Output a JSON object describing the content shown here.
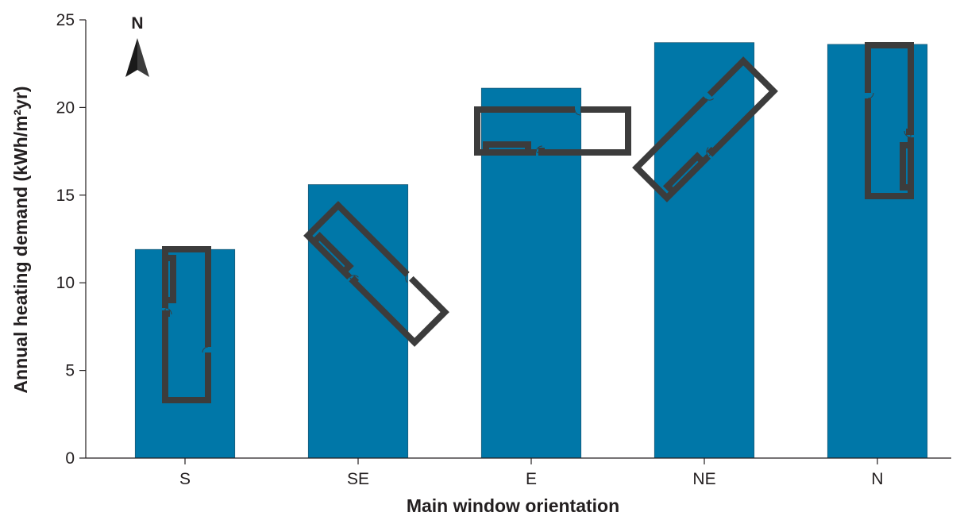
{
  "chart_data": {
    "type": "bar",
    "categories": [
      "S",
      "SE",
      "E",
      "NE",
      "N"
    ],
    "values": [
      11.9,
      15.6,
      21.1,
      23.7,
      23.6
    ],
    "xlabel": "Main window orientation",
    "ylabel": "Annual heating demand (kWh/m²yr)",
    "ylim": [
      0,
      25
    ],
    "yticks": [
      0,
      5,
      10,
      15,
      20,
      25
    ],
    "grid": false,
    "bar_color": "#0077a8",
    "orientation_angles_deg": [
      0,
      -45,
      -90,
      -135,
      180
    ]
  },
  "compass": {
    "label": "N",
    "icon": "north-arrow-icon"
  },
  "icons": {
    "room_plan": "floor-plan-icon"
  }
}
